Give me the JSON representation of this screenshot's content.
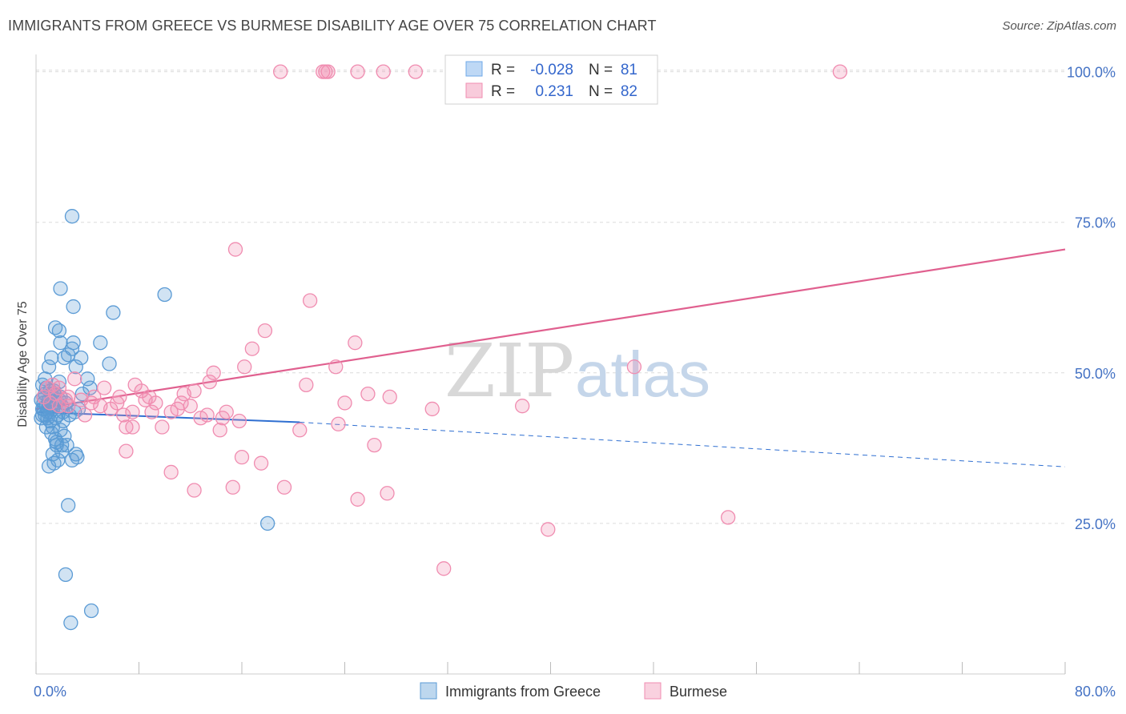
{
  "header": {
    "title": "IMMIGRANTS FROM GREECE VS BURMESE DISABILITY AGE OVER 75 CORRELATION CHART",
    "source": "Source: ZipAtlas.com"
  },
  "watermark": {
    "part1": "ZIP",
    "part2": "atlas"
  },
  "chart_data": {
    "type": "scatter",
    "ylabel": "Disability Age Over 75",
    "xlim": [
      0,
      80
    ],
    "ylim": [
      0,
      105
    ],
    "x_ticks": [
      "0.0%",
      "80.0%"
    ],
    "y_ticks": [
      {
        "value": 25,
        "label": "25.0%"
      },
      {
        "value": 50,
        "label": "50.0%"
      },
      {
        "value": 75,
        "label": "75.0%"
      },
      {
        "value": 100,
        "label": "100.0%"
      }
    ],
    "grid": "horizontal-dashed",
    "legend_position": "top-center",
    "stats_legend": [
      {
        "r_label": "R =",
        "r_value": "-0.028",
        "n_label": "N =",
        "n_value": "81",
        "color": "#6fa8e8"
      },
      {
        "r_label": "R =",
        "r_value": "0.231",
        "n_label": "N =",
        "n_value": "82",
        "color": "#f08cb0"
      }
    ],
    "series": [
      {
        "name": "Immigrants from Greece",
        "color": "#5b9bd5",
        "line_color": "#2f6fd1",
        "trend": {
          "x0": 0,
          "y0": 43.5,
          "x1": 20.5,
          "y1": 41.8,
          "dash_to_x": 80,
          "dash_to_y": 34.4
        },
        "points": [
          [
            0.4,
            45.5
          ],
          [
            0.5,
            44.0
          ],
          [
            0.6,
            46.0
          ],
          [
            0.7,
            43.0
          ],
          [
            0.8,
            47.5
          ],
          [
            0.9,
            42.5
          ],
          [
            0.5,
            48.0
          ],
          [
            0.6,
            45.0
          ],
          [
            1.0,
            44.5
          ],
          [
            1.1,
            43.5
          ],
          [
            1.2,
            46.5
          ],
          [
            0.7,
            49.0
          ],
          [
            0.8,
            41.0
          ],
          [
            1.3,
            44.0
          ],
          [
            1.5,
            42.5
          ],
          [
            1.4,
            47.0
          ],
          [
            1.6,
            45.0
          ],
          [
            1.7,
            43.0
          ],
          [
            1.8,
            48.5
          ],
          [
            1.9,
            46.0
          ],
          [
            2.0,
            44.5
          ],
          [
            2.1,
            42.0
          ],
          [
            1.0,
            51.0
          ],
          [
            1.2,
            52.5
          ],
          [
            1.5,
            57.5
          ],
          [
            1.8,
            57.0
          ],
          [
            1.9,
            55.0
          ],
          [
            2.2,
            52.5
          ],
          [
            2.5,
            53.0
          ],
          [
            2.8,
            54.0
          ],
          [
            2.9,
            55.0
          ],
          [
            3.1,
            51.0
          ],
          [
            3.5,
            52.5
          ],
          [
            4.0,
            49.0
          ],
          [
            4.2,
            47.5
          ],
          [
            5.0,
            55.0
          ],
          [
            5.7,
            51.5
          ],
          [
            6.0,
            60.0
          ],
          [
            2.9,
            61.0
          ],
          [
            1.9,
            64.0
          ],
          [
            2.8,
            76.0
          ],
          [
            10.0,
            63.0
          ],
          [
            1.2,
            40.0
          ],
          [
            1.5,
            39.0
          ],
          [
            1.6,
            38.0
          ],
          [
            1.9,
            40.5
          ],
          [
            2.0,
            38.0
          ],
          [
            2.2,
            39.5
          ],
          [
            2.4,
            38.0
          ],
          [
            1.3,
            36.5
          ],
          [
            1.4,
            35.0
          ],
          [
            1.0,
            34.5
          ],
          [
            1.7,
            35.5
          ],
          [
            2.0,
            37.0
          ],
          [
            2.8,
            35.5
          ],
          [
            3.2,
            36.0
          ],
          [
            3.1,
            36.5
          ],
          [
            0.9,
            43.5
          ],
          [
            1.1,
            42.0
          ],
          [
            1.3,
            41.0
          ],
          [
            2.6,
            43.0
          ],
          [
            3.0,
            43.5
          ],
          [
            3.3,
            44.0
          ],
          [
            0.6,
            44.0
          ],
          [
            0.5,
            43.0
          ],
          [
            0.4,
            42.5
          ],
          [
            1.6,
            38.5
          ],
          [
            2.5,
            28.0
          ],
          [
            2.3,
            16.5
          ],
          [
            4.3,
            10.5
          ],
          [
            2.7,
            8.5
          ],
          [
            18.0,
            25.0
          ],
          [
            0.8,
            44.5
          ],
          [
            1.0,
            45.5
          ],
          [
            1.4,
            46.5
          ],
          [
            2.1,
            43.5
          ],
          [
            2.3,
            45.0
          ],
          [
            1.1,
            47.0
          ],
          [
            0.7,
            46.5
          ],
          [
            3.6,
            46.5
          ],
          [
            1.8,
            45.5
          ]
        ]
      },
      {
        "name": "Burmese",
        "color": "#f08cb0",
        "line_color": "#e0608f",
        "trend": {
          "x0": 0,
          "y0": 44.0,
          "x1": 80,
          "y1": 70.5
        },
        "points": [
          [
            19.0,
            100
          ],
          [
            22.3,
            100
          ],
          [
            22.5,
            100
          ],
          [
            22.7,
            100
          ],
          [
            25.0,
            100
          ],
          [
            27.0,
            100
          ],
          [
            29.5,
            100
          ],
          [
            62.5,
            100
          ],
          [
            15.5,
            70.5
          ],
          [
            21.3,
            62.0
          ],
          [
            17.8,
            57.0
          ],
          [
            24.8,
            55.0
          ],
          [
            16.8,
            54.0
          ],
          [
            13.8,
            50.0
          ],
          [
            16.2,
            51.0
          ],
          [
            23.3,
            51.0
          ],
          [
            46.5,
            51.0
          ],
          [
            21.0,
            48.0
          ],
          [
            13.5,
            48.5
          ],
          [
            12.3,
            47.0
          ],
          [
            7.7,
            48.0
          ],
          [
            8.2,
            47.0
          ],
          [
            5.3,
            47.5
          ],
          [
            4.5,
            46.0
          ],
          [
            3.0,
            49.0
          ],
          [
            2.5,
            46.0
          ],
          [
            1.8,
            47.5
          ],
          [
            1.5,
            46.5
          ],
          [
            1.1,
            45.0
          ],
          [
            1.8,
            44.5
          ],
          [
            2.5,
            44.5
          ],
          [
            3.5,
            45.5
          ],
          [
            4.3,
            45.0
          ],
          [
            5.0,
            44.5
          ],
          [
            6.3,
            45.0
          ],
          [
            6.8,
            43.0
          ],
          [
            7.5,
            43.5
          ],
          [
            8.5,
            45.5
          ],
          [
            9.3,
            45.0
          ],
          [
            9.0,
            43.5
          ],
          [
            10.5,
            43.5
          ],
          [
            11.0,
            44.0
          ],
          [
            12.0,
            44.5
          ],
          [
            12.8,
            42.5
          ],
          [
            13.3,
            43.0
          ],
          [
            14.5,
            42.5
          ],
          [
            14.8,
            43.5
          ],
          [
            15.8,
            42.0
          ],
          [
            11.5,
            46.5
          ],
          [
            27.5,
            46.0
          ],
          [
            30.8,
            44.0
          ],
          [
            37.8,
            44.5
          ],
          [
            25.8,
            46.5
          ],
          [
            24.0,
            45.0
          ],
          [
            7.0,
            41.0
          ],
          [
            7.5,
            41.0
          ],
          [
            9.8,
            41.0
          ],
          [
            14.3,
            40.5
          ],
          [
            20.5,
            40.5
          ],
          [
            23.5,
            41.5
          ],
          [
            7.0,
            37.0
          ],
          [
            16.0,
            36.0
          ],
          [
            17.5,
            35.0
          ],
          [
            26.3,
            38.0
          ],
          [
            10.5,
            33.5
          ],
          [
            12.3,
            30.5
          ],
          [
            15.3,
            31.0
          ],
          [
            19.3,
            31.0
          ],
          [
            25.0,
            29.0
          ],
          [
            27.3,
            30.0
          ],
          [
            39.8,
            24.0
          ],
          [
            53.8,
            26.0
          ],
          [
            31.7,
            17.5
          ],
          [
            2.3,
            45.5
          ],
          [
            3.8,
            43.0
          ],
          [
            5.8,
            44.0
          ],
          [
            6.5,
            46.0
          ],
          [
            8.8,
            46.0
          ],
          [
            11.3,
            45.0
          ],
          [
            0.9,
            47.5
          ],
          [
            1.3,
            48.0
          ],
          [
            0.6,
            46.0
          ]
        ]
      }
    ]
  }
}
